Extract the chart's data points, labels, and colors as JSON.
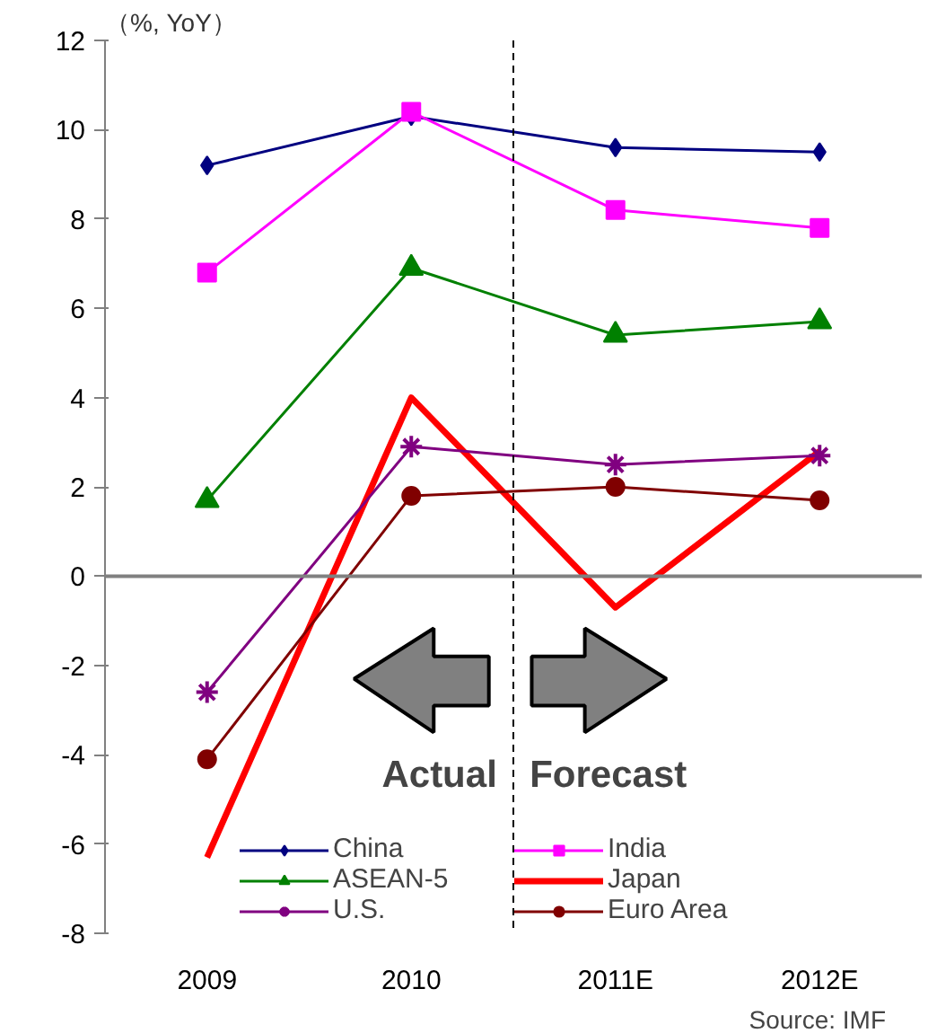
{
  "chart_data": {
    "type": "line",
    "ylabel": "（%, YoY）",
    "x": [
      2009,
      2010,
      2011,
      2012
    ],
    "xlim": [
      2008.5,
      2012.5
    ],
    "xticks": [
      2009,
      2010,
      {
        "value": 2011,
        "label": "2011E"
      },
      {
        "value": 2012,
        "label": "2012E"
      }
    ],
    "ylim": [
      -8,
      12
    ],
    "yticks": [
      -8,
      -6,
      -4,
      -2,
      0,
      2,
      4,
      6,
      8,
      10,
      12
    ],
    "grid": false,
    "legend": "bottom",
    "series": [
      {
        "name": "China",
        "color": "#000080",
        "marker": "diamond",
        "values": [
          9.2,
          10.3,
          9.6,
          9.5
        ]
      },
      {
        "name": "India",
        "color": "#ff00ff",
        "marker": "square",
        "values": [
          6.8,
          10.4,
          8.2,
          7.8
        ]
      },
      {
        "name": "ASEAN-5",
        "color": "#008000",
        "marker": "triangle",
        "values": [
          1.7,
          6.9,
          5.4,
          5.7
        ]
      },
      {
        "name": "Japan",
        "color": "#ff0000",
        "marker": "none",
        "values": [
          -6.3,
          4.0,
          -0.7,
          2.8
        ]
      },
      {
        "name": "U.S.",
        "color": "#800080",
        "marker": "cross",
        "values": [
          -2.6,
          2.9,
          2.5,
          2.7
        ]
      },
      {
        "name": "Euro Area",
        "color": "#800000",
        "marker": "circle",
        "values": [
          -4.1,
          1.8,
          2.0,
          1.7
        ]
      }
    ],
    "ref_lines": [
      {
        "axis": "x",
        "value": 2010.5,
        "line_style": "dashed",
        "color": "#000000"
      },
      {
        "axis": "y",
        "value": 0,
        "color": "#808080"
      }
    ],
    "annotations": [
      "Actual",
      "Forecast",
      "Source: IMF"
    ]
  }
}
